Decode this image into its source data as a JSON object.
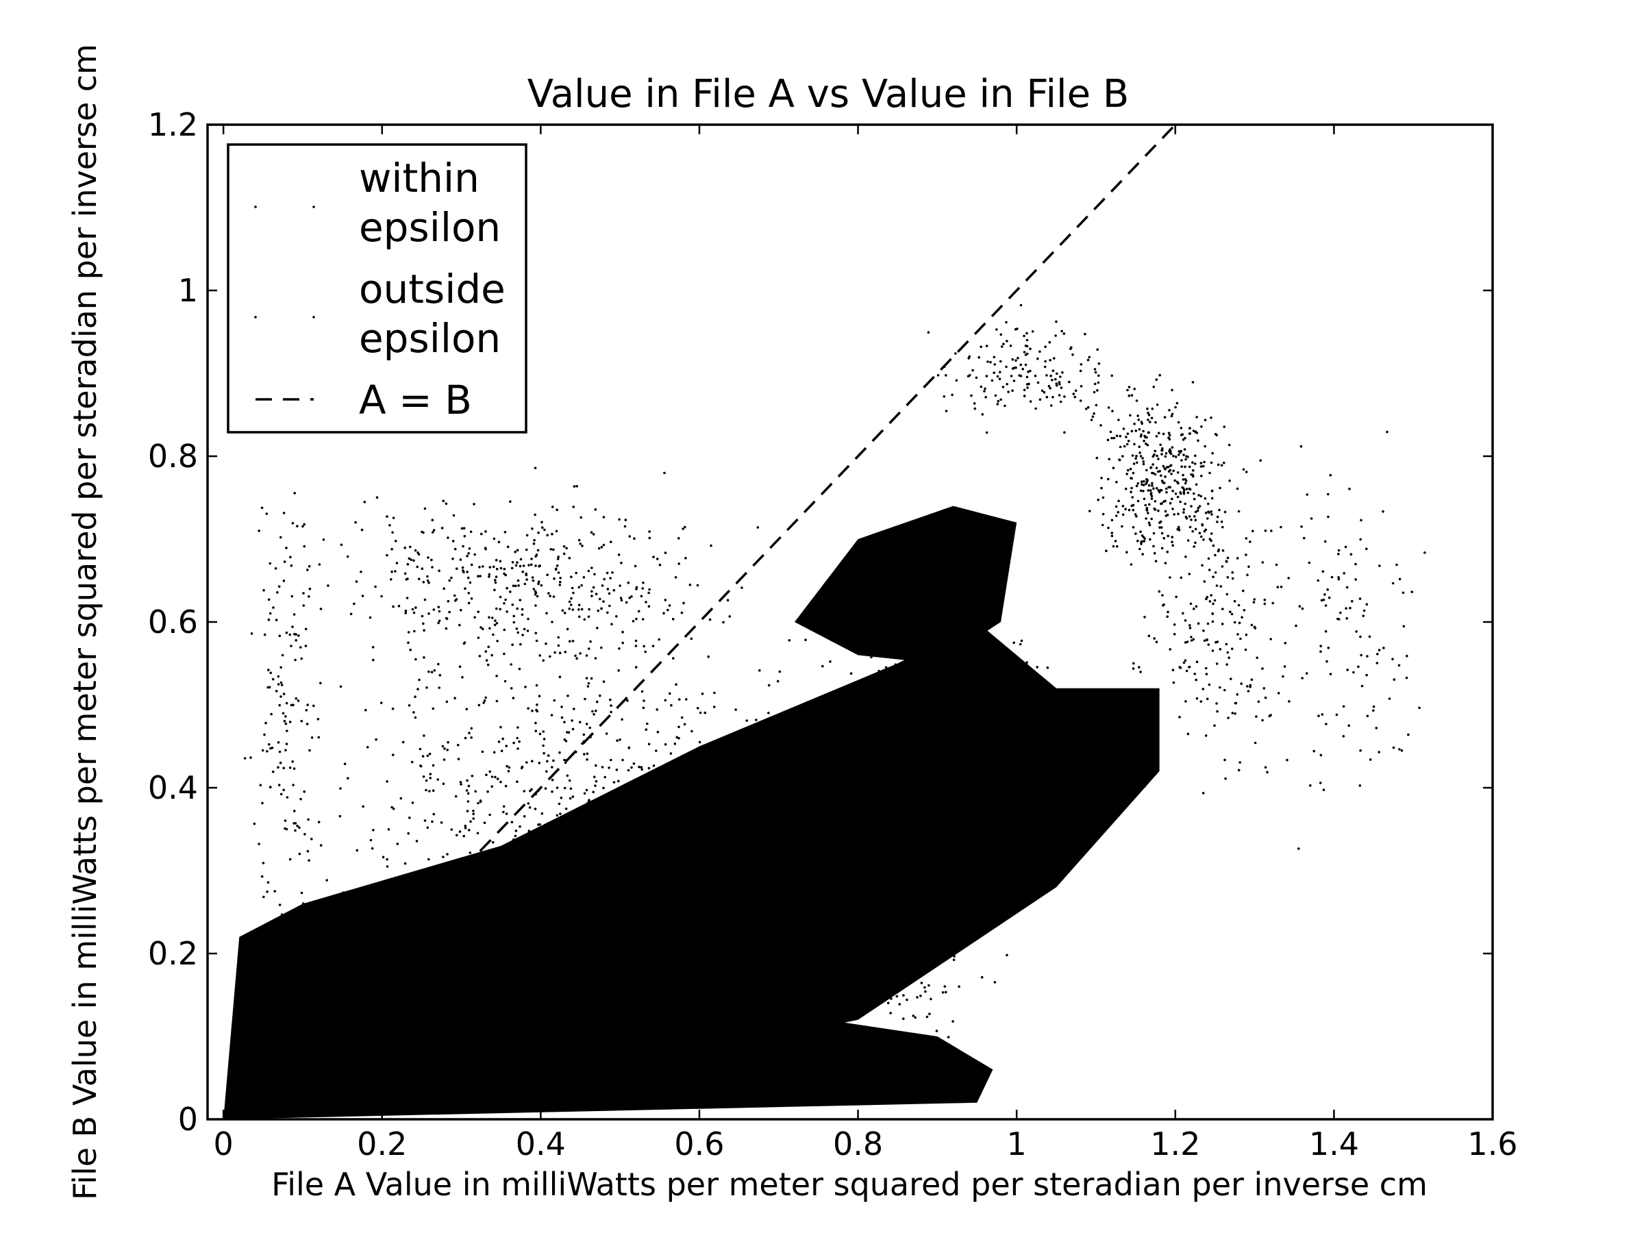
{
  "chart_data": {
    "type": "scatter",
    "title": "Value in File A vs Value in File B",
    "xlabel": "File A Value in milliWatts per meter squared per steradian per inverse cm",
    "ylabel": "File B Value in milliWatts per meter squared per steradian per inverse cm",
    "xlim": [
      -0.02,
      1.6
    ],
    "ylim": [
      0,
      1.2
    ],
    "xticks": [
      "0",
      "0.2",
      "0.4",
      "0.6",
      "0.8",
      "1",
      "1.2",
      "1.4",
      "1.6"
    ],
    "yticks": [
      "0",
      "0.2",
      "0.4",
      "0.6",
      "0.8",
      "1",
      "1.2"
    ],
    "grid": false,
    "legend_position": "upper-left",
    "series": [
      {
        "name": "within epsilon",
        "marker": "point",
        "color": "#000000",
        "points": [
          [
            0.0,
            0.0
          ]
        ]
      },
      {
        "name": "outside epsilon",
        "marker": "point",
        "color": "#000000",
        "clusters": [
          {
            "region": "dense-lower-left",
            "x": [
              0.0,
              0.95
            ],
            "y": [
              0.0,
              0.25
            ]
          },
          {
            "region": "main-diagonal-band",
            "x": [
              0.15,
              1.2
            ],
            "y": [
              0.1,
              0.55
            ]
          },
          {
            "region": "upper-middle-blob",
            "x": [
              0.7,
              1.0
            ],
            "y": [
              0.55,
              0.75
            ]
          },
          {
            "region": "upper-right-cloud",
            "x": [
              1.05,
              1.35
            ],
            "y": [
              0.6,
              0.95
            ]
          },
          {
            "region": "sparse-upper-left",
            "x": [
              0.05,
              0.75
            ],
            "y": [
              0.45,
              0.8
            ]
          },
          {
            "region": "sparse-right-tail",
            "x": [
              1.3,
              1.58
            ],
            "y": [
              0.35,
              0.95
            ]
          }
        ]
      },
      {
        "name": "A = B",
        "line_style": "dashed",
        "color": "#000000",
        "points": [
          [
            -0.02,
            -0.02
          ],
          [
            1.2,
            1.2
          ]
        ]
      }
    ]
  },
  "legend": {
    "items": [
      "within\nepsilon",
      "outside\nepsilon",
      "A = B"
    ]
  }
}
